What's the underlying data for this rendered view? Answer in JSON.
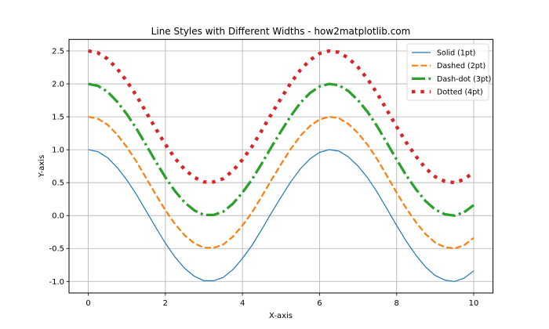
{
  "chart_data": {
    "type": "line",
    "title": "Line Styles with Different Widths - how2matplotlib.com",
    "xlabel": "X-axis",
    "ylabel": "Y-axis",
    "xlim": [
      -0.5,
      10.5
    ],
    "ylim": [
      -1.175,
      2.675
    ],
    "xticks": [
      0,
      2,
      4,
      6,
      8,
      10
    ],
    "xtick_labels": [
      "0",
      "2",
      "4",
      "6",
      "8",
      "10"
    ],
    "yticks": [
      -1.0,
      -0.5,
      0.0,
      0.5,
      1.0,
      1.5,
      2.0,
      2.5
    ],
    "ytick_labels": [
      "-1.0",
      "-0.5",
      "0.0",
      "0.5",
      "1.0",
      "1.5",
      "2.0",
      "2.5"
    ],
    "grid": true,
    "legend_position": "top-right",
    "x": [
      0,
      0.25,
      0.5,
      0.75,
      1,
      1.25,
      1.5,
      1.75,
      2,
      2.25,
      2.5,
      2.75,
      3,
      3.25,
      3.5,
      3.75,
      4,
      4.25,
      4.5,
      4.75,
      5,
      5.25,
      5.5,
      5.75,
      6,
      6.25,
      6.5,
      6.75,
      7,
      7.25,
      7.5,
      7.75,
      8,
      8.25,
      8.5,
      8.75,
      9,
      9.25,
      9.5,
      9.75,
      10
    ],
    "series": [
      {
        "name": "Solid (1pt)",
        "color": "#1f77b4",
        "style": "solid",
        "width_pt": 1,
        "values": [
          1.0,
          0.97,
          0.88,
          0.73,
          0.54,
          0.32,
          0.07,
          -0.18,
          -0.42,
          -0.63,
          -0.8,
          -0.92,
          -0.99,
          -0.99,
          -0.94,
          -0.82,
          -0.65,
          -0.45,
          -0.21,
          0.04,
          0.28,
          0.51,
          0.71,
          0.86,
          0.96,
          1.0,
          0.98,
          0.89,
          0.75,
          0.57,
          0.35,
          0.1,
          -0.15,
          -0.39,
          -0.6,
          -0.78,
          -0.91,
          -0.98,
          -1.0,
          -0.95,
          -0.84
        ]
      },
      {
        "name": "Dashed (2pt)",
        "color": "#ff7f0e",
        "style": "dashed",
        "width_pt": 2,
        "values": [
          1.5,
          1.47,
          1.38,
          1.23,
          1.04,
          0.82,
          0.57,
          0.32,
          0.08,
          -0.13,
          -0.3,
          -0.42,
          -0.49,
          -0.49,
          -0.44,
          -0.32,
          -0.15,
          0.05,
          0.29,
          0.54,
          0.78,
          1.01,
          1.21,
          1.36,
          1.46,
          1.5,
          1.48,
          1.39,
          1.25,
          1.07,
          0.85,
          0.6,
          0.35,
          0.11,
          -0.1,
          -0.28,
          -0.41,
          -0.48,
          -0.5,
          -0.45,
          -0.34
        ]
      },
      {
        "name": "Dash-dot (3pt)",
        "color": "#2ca02c",
        "style": "dashdot",
        "width_pt": 3,
        "values": [
          2.0,
          1.97,
          1.88,
          1.73,
          1.54,
          1.32,
          1.07,
          0.82,
          0.58,
          0.37,
          0.2,
          0.08,
          0.01,
          0.01,
          0.06,
          0.18,
          0.35,
          0.55,
          0.79,
          1.04,
          1.28,
          1.51,
          1.71,
          1.86,
          1.96,
          2.0,
          1.98,
          1.89,
          1.75,
          1.57,
          1.35,
          1.1,
          0.85,
          0.61,
          0.4,
          0.22,
          0.09,
          0.02,
          0.0,
          0.05,
          0.16
        ]
      },
      {
        "name": "Dotted (4pt)",
        "color": "#d62728",
        "style": "dotted",
        "width_pt": 4,
        "values": [
          2.5,
          2.47,
          2.38,
          2.23,
          2.04,
          1.82,
          1.57,
          1.32,
          1.08,
          0.87,
          0.7,
          0.58,
          0.51,
          0.51,
          0.56,
          0.68,
          0.85,
          1.05,
          1.29,
          1.54,
          1.78,
          2.01,
          2.21,
          2.36,
          2.46,
          2.5,
          2.48,
          2.39,
          2.25,
          2.07,
          1.85,
          1.6,
          1.35,
          1.11,
          0.9,
          0.72,
          0.59,
          0.52,
          0.5,
          0.55,
          0.66
        ]
      }
    ]
  }
}
